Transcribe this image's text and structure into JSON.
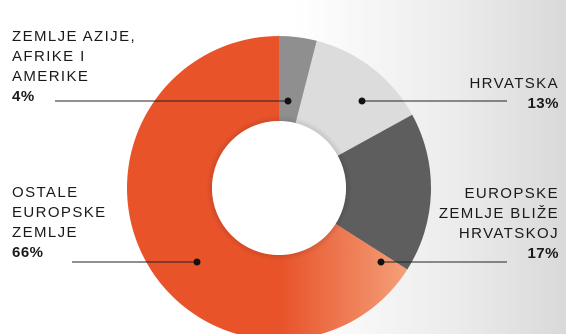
{
  "chart_data": {
    "type": "pie",
    "variant": "donut",
    "slices": [
      {
        "label_lines": [
          "ZEMLJE AZIJE,",
          "AFRIKE I",
          "AMERIKE"
        ],
        "value": 4,
        "value_text": "4%",
        "color": "#8f8f8f"
      },
      {
        "label_lines": [
          "HRVATSKA"
        ],
        "value": 13,
        "value_text": "13%",
        "color": "#dcdcdc"
      },
      {
        "label_lines": [
          "EUROPSKE",
          "ZEMLJE BLIŽE",
          "HRVATSKOJ"
        ],
        "value": 17,
        "value_text": "17%",
        "color": "#5e5e5e"
      },
      {
        "label_lines": [
          "OSTALE",
          "EUROPSKE",
          "ZEMLJE"
        ],
        "value": 66,
        "value_text": "66%",
        "color": "#e8532a",
        "color_light": "#f4a07a"
      }
    ],
    "start_angle": "top",
    "direction": "clockwise",
    "legend": "none"
  }
}
